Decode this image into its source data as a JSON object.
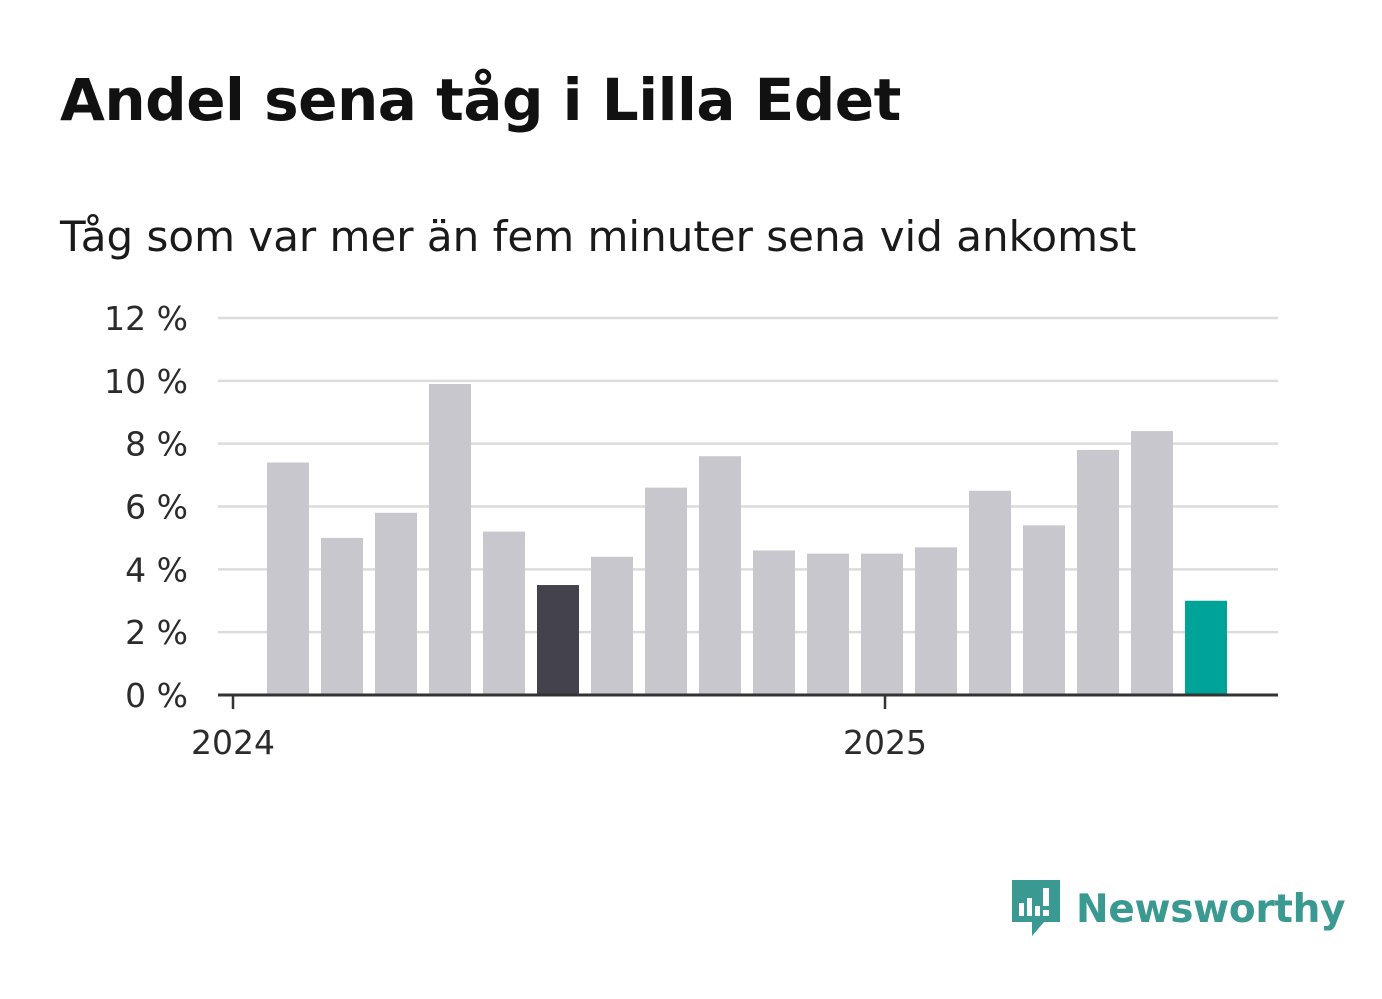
{
  "title": "Andel sena tåg i Lilla Edet",
  "subtitle": "Tåg som var mer än fem minuter sena vid ankomst",
  "brand": {
    "name": "Newsworthy",
    "icon": "newsworthy-logo-icon",
    "color": "#3a9a92"
  },
  "chart_data": {
    "type": "bar",
    "y_unit": "%",
    "ylim": [
      0,
      12
    ],
    "yticks": [
      0,
      2,
      4,
      6,
      8,
      10,
      12
    ],
    "ytick_labels": [
      "0 %",
      "2 %",
      "4 %",
      "6 %",
      "8 %",
      "10 %",
      "12 %"
    ],
    "xtick_labels": [
      "2024",
      "2025"
    ],
    "grid": true,
    "colors": {
      "default": "#c8c7ce",
      "highlight_dark": "#43424d",
      "highlight_latest": "#00a397",
      "grid": "#dcdcdc",
      "axis": "#333333"
    },
    "series": [
      {
        "values": [
          7.4,
          5.0,
          5.8,
          9.9,
          5.2,
          3.5,
          4.4,
          6.6,
          7.6,
          4.6,
          4.5,
          4.5,
          4.7,
          6.5,
          5.4,
          7.8,
          8.4,
          3.0
        ],
        "highlight": [
          null,
          null,
          null,
          null,
          null,
          "dark",
          null,
          null,
          null,
          null,
          null,
          null,
          null,
          null,
          null,
          null,
          null,
          "latest"
        ]
      }
    ]
  }
}
